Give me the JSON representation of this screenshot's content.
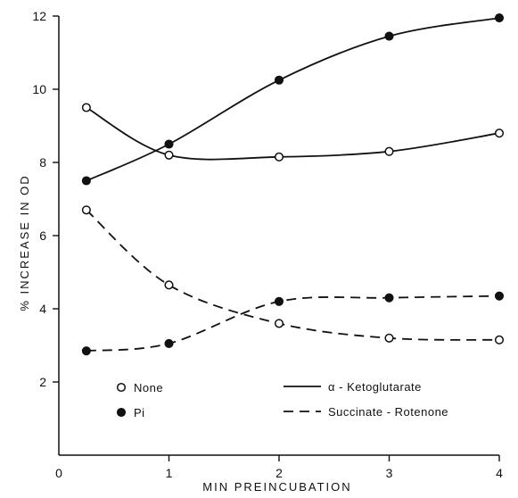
{
  "chart_data": {
    "type": "line",
    "title": "",
    "xlabel": "MIN PREINCUBATION",
    "ylabel": "% INCREASE IN OD",
    "xlim": [
      0,
      4
    ],
    "ylim": [
      0,
      12
    ],
    "xticks": [
      "0",
      "1",
      "2",
      "3",
      "4"
    ],
    "yticks": [
      "2",
      "4",
      "6",
      "8",
      "10",
      "12"
    ],
    "grid": false,
    "legend": {
      "markers": [
        {
          "label": "None",
          "marker": "open-circle"
        },
        {
          "label": "Pi",
          "marker": "filled-circle"
        }
      ],
      "lines": [
        {
          "label": "α - Ketoglutarate",
          "style": "solid"
        },
        {
          "label": "Succinate - Rotenone",
          "style": "dashed"
        }
      ]
    },
    "series": [
      {
        "substrate": "α - Ketoglutarate",
        "condition": "None",
        "marker": "open",
        "style": "solid",
        "x": [
          0.25,
          1,
          2,
          3,
          4
        ],
        "y": [
          9.5,
          8.2,
          8.15,
          8.3,
          8.8
        ]
      },
      {
        "substrate": "α - Ketoglutarate",
        "condition": "Pi",
        "marker": "filled",
        "style": "solid",
        "x": [
          0.25,
          1,
          2,
          3,
          4
        ],
        "y": [
          7.5,
          8.5,
          10.25,
          11.45,
          11.95
        ]
      },
      {
        "substrate": "Succinate - Rotenone",
        "condition": "None",
        "marker": "open",
        "style": "dashed",
        "x": [
          0.25,
          1,
          2,
          3,
          4
        ],
        "y": [
          6.7,
          4.65,
          3.6,
          3.2,
          3.15
        ]
      },
      {
        "substrate": "Succinate - Rotenone",
        "condition": "Pi",
        "marker": "filled",
        "style": "dashed",
        "x": [
          0.25,
          1,
          2,
          3,
          4
        ],
        "y": [
          2.85,
          3.05,
          4.2,
          4.3,
          4.35
        ]
      }
    ]
  }
}
